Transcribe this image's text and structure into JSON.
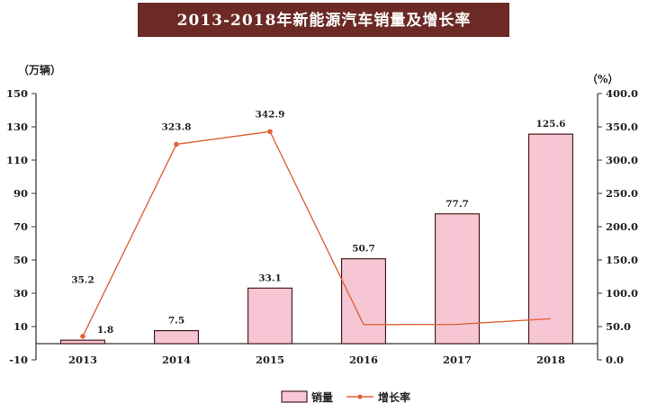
{
  "title": "2013-2018年新能源汽车销量及增长率",
  "chart_data": {
    "type": "bar",
    "categories": [
      "2013",
      "2014",
      "2015",
      "2016",
      "2017",
      "2018"
    ],
    "series": [
      {
        "name": "销量",
        "type": "bar",
        "axis": "left",
        "values": [
          1.8,
          7.5,
          33.1,
          50.7,
          77.7,
          125.6
        ],
        "color": "#f7c6d5"
      },
      {
        "name": "增长率",
        "type": "line",
        "axis": "right",
        "values": [
          35.2,
          323.8,
          342.9,
          53.0,
          53.3,
          61.7
        ],
        "color": "#e0633a"
      }
    ],
    "bar_labels": [
      "1.8",
      "7.5",
      "33.1",
      "50.7",
      "77.7",
      "125.6"
    ],
    "line_labels": [
      "35.2",
      "323.8",
      "342.9",
      "",
      "",
      ""
    ],
    "y_left": {
      "unit": "（万辆）",
      "ticks": [
        "150",
        "130",
        "110",
        "90",
        "70",
        "50",
        "30",
        "10",
        "-10"
      ],
      "range": [
        -10,
        150
      ]
    },
    "y_right": {
      "unit": "（%）",
      "ticks": [
        "400.0",
        "350.0",
        "300.0",
        "250.0",
        "200.0",
        "150.0",
        "100.0",
        "50.0",
        "0.0"
      ],
      "range": [
        0,
        400
      ]
    },
    "legend_position": "bottom-center",
    "grid": false
  }
}
